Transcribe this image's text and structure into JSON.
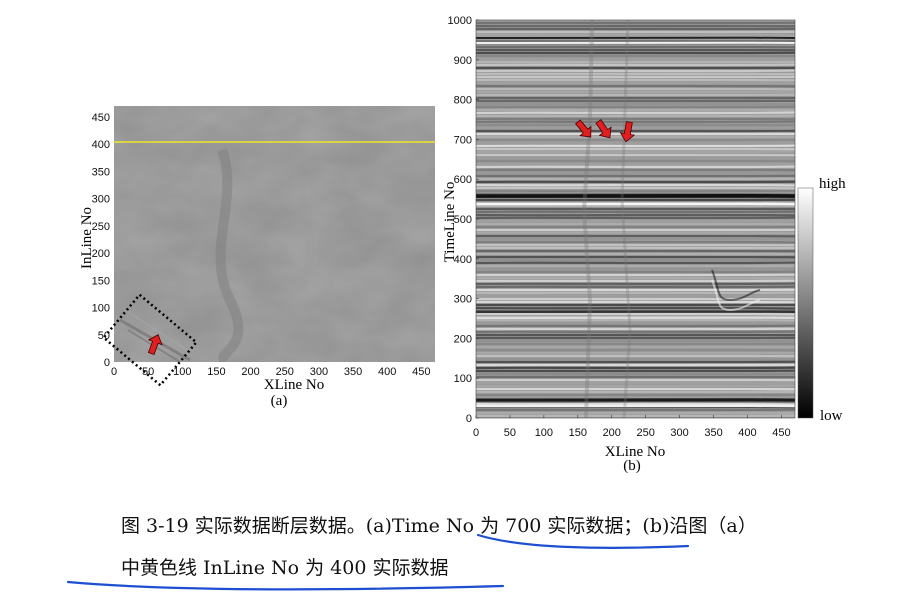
{
  "panel_a": {
    "x_ticks": [
      "0",
      "50",
      "100",
      "150",
      "200",
      "250",
      "300",
      "350",
      "400",
      "450"
    ],
    "y_ticks": [
      "0",
      "50",
      "100",
      "150",
      "200",
      "250",
      "300",
      "350",
      "400",
      "450"
    ],
    "xlabel": "XLine No",
    "ylabel": "InLine No",
    "label": "(a)",
    "line_color": "#f0e62a",
    "arrow_color": "#e02020"
  },
  "panel_b": {
    "x_ticks": [
      "0",
      "50",
      "100",
      "150",
      "200",
      "250",
      "300",
      "350",
      "400",
      "450"
    ],
    "y_ticks": [
      "0",
      "100",
      "200",
      "300",
      "400",
      "500",
      "600",
      "700",
      "800",
      "900",
      "1000"
    ],
    "xlabel": "XLine No",
    "ylabel": "TimeLine No",
    "label": "(b)",
    "colorbar_high": "high",
    "colorbar_low": "low",
    "arrow_color": "#e02020"
  },
  "caption": {
    "line1": "图 3-19 实际数据断层数据。(a)Time No 为 700 实际数据；(b)沿图（a）",
    "line2": "中黄色线 InLine No 为 400 实际数据",
    "underline_color": "#1f4fd1"
  }
}
